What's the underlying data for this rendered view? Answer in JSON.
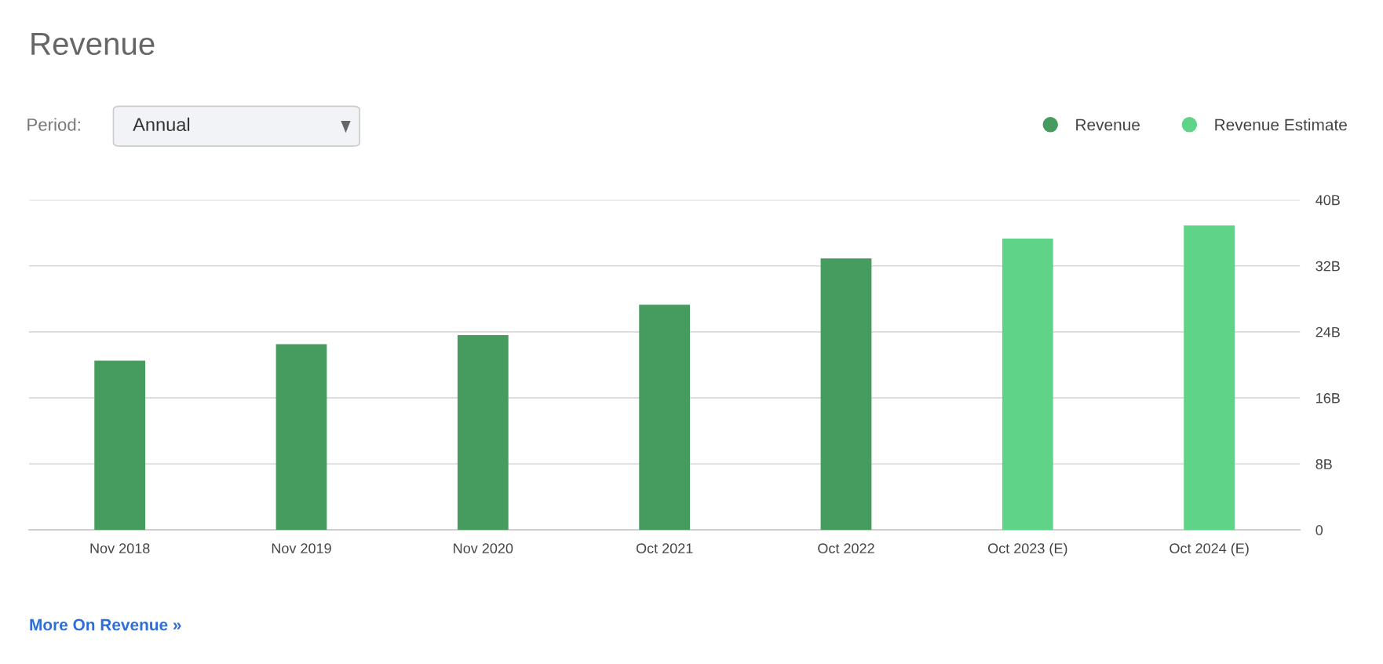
{
  "chart_data": {
    "type": "bar",
    "title": "Revenue",
    "categories": [
      "Nov 2018",
      "Nov 2019",
      "Nov 2020",
      "Oct 2021",
      "Oct 2022",
      "Oct 2023 (E)",
      "Oct 2024 (E)"
    ],
    "series": [
      {
        "name": "Revenue",
        "color": "#469b5f",
        "values": [
          20.5,
          22.5,
          23.6,
          27.3,
          32.9,
          null,
          null
        ]
      },
      {
        "name": "Revenue Estimate",
        "color": "#5fd388",
        "values": [
          null,
          null,
          null,
          null,
          null,
          35.3,
          36.9
        ]
      }
    ],
    "ylim": [
      0,
      40
    ],
    "yticks": [
      0,
      {
        "value": 8,
        "label": "8B"
      },
      {
        "value": 16,
        "label": "16B"
      },
      {
        "value": 24,
        "label": "24B"
      },
      {
        "value": 32,
        "label": "32B"
      },
      {
        "value": 40,
        "label": "40B"
      }
    ],
    "grid": "y",
    "legend": "top right",
    "annotations": [
      "Period:",
      "Annual",
      "More On Revenue »"
    ]
  }
}
